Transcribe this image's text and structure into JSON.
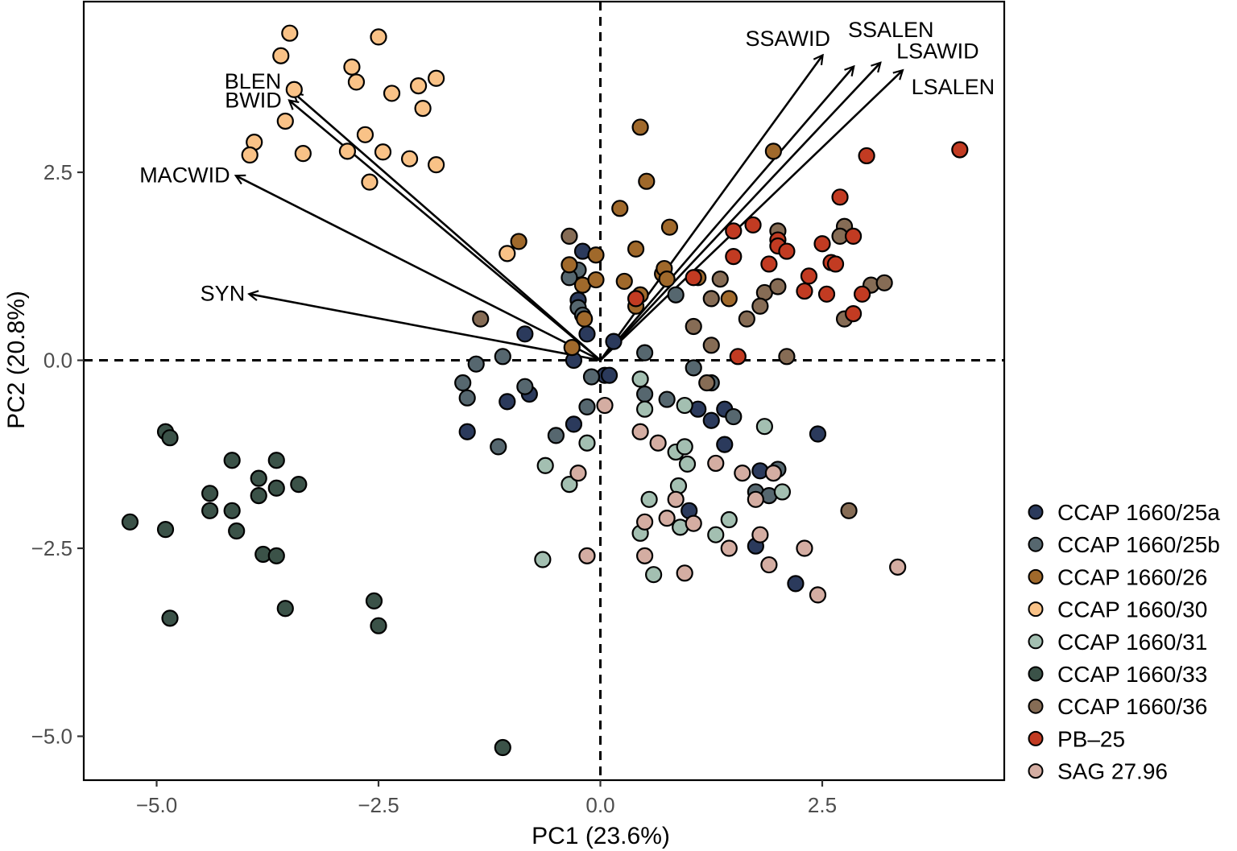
{
  "chart_data": {
    "type": "scatter",
    "title": "",
    "xlabel": "PC1 (23.6%)",
    "ylabel": "PC2 (20.8%)",
    "xlim": [
      -5.8,
      4.55
    ],
    "ylim": [
      -5.55,
      4.8
    ],
    "xticks": [
      -5.0,
      -2.5,
      0.0,
      2.5
    ],
    "xtick_labels": [
      "−5.0",
      "−2.5",
      "0.0",
      "2.5"
    ],
    "yticks": [
      -5.0,
      -2.5,
      0.0,
      2.5
    ],
    "ytick_labels": [
      "−5.0",
      "−2.5",
      "0.0",
      "2.5"
    ],
    "grid": false,
    "reference_lines": {
      "x": 0,
      "y": 0,
      "style": "dashed"
    },
    "legend_position": "right",
    "series": [
      {
        "name": "CCAP 1660/25a",
        "color": "#2b3a5c",
        "points": [
          [
            -0.2,
            1.45
          ],
          [
            -0.25,
            0.8
          ],
          [
            -0.85,
            0.35
          ],
          [
            0.15,
            0.25
          ],
          [
            -0.15,
            0.35
          ],
          [
            -0.3,
            0.0
          ],
          [
            0.05,
            -0.2
          ],
          [
            0.1,
            -0.2
          ],
          [
            -1.05,
            -0.55
          ],
          [
            -0.8,
            -0.45
          ],
          [
            -0.3,
            -0.85
          ],
          [
            -1.5,
            -0.95
          ],
          [
            1.1,
            -0.65
          ],
          [
            1.25,
            -0.8
          ],
          [
            1.4,
            -0.65
          ],
          [
            1.4,
            -1.12
          ],
          [
            2.45,
            -0.98
          ],
          [
            1.8,
            -1.47
          ],
          [
            1.0,
            -2.0
          ],
          [
            1.75,
            -2.47
          ],
          [
            2.2,
            -2.97
          ]
        ]
      },
      {
        "name": "CCAP 1660/25b",
        "color": "#56676f",
        "points": [
          -0.25,
          1.2,
          -0.35,
          1.1,
          -0.25,
          0.7,
          -0.2,
          0.6,
          -1.1,
          0.05,
          -1.4,
          -0.05,
          -1.55,
          -0.3,
          -1.5,
          -0.5,
          -0.85,
          -0.35,
          0.5,
          0.1,
          -0.1,
          -0.22,
          0.5,
          -0.45,
          0.75,
          -0.52,
          -0.15,
          -0.62,
          1.05,
          -0.1,
          -0.5,
          -1.0,
          -1.15,
          -1.15,
          0.85,
          0.87,
          1.5,
          -0.75,
          1.75,
          -1.75,
          1.9,
          -1.8,
          2.0,
          -1.45,
          1.25,
          -0.3
        ]
      },
      {
        "name": "CCAP 1660/26",
        "color": "#a0692b",
        "points": [
          [
            0.45,
            3.1
          ],
          [
            0.52,
            2.38
          ],
          [
            1.95,
            2.78
          ],
          [
            0.22,
            2.02
          ],
          [
            0.78,
            1.77
          ],
          [
            -0.92,
            1.58
          ],
          [
            0.4,
            1.48
          ],
          [
            -0.35,
            1.27
          ],
          [
            -0.05,
            1.4
          ],
          [
            -0.2,
            1.0
          ],
          [
            0.27,
            1.05
          ],
          [
            0.7,
            1.15
          ],
          [
            0.72,
            1.22
          ],
          [
            0.75,
            1.08
          ],
          [
            1.1,
            1.1
          ],
          [
            -0.05,
            1.07
          ],
          [
            0.45,
            0.87
          ],
          [
            0.4,
            0.72
          ],
          [
            -0.18,
            0.55
          ],
          [
            -0.32,
            0.17
          ],
          [
            1.45,
            0.82
          ]
        ]
      },
      {
        "name": "CCAP 1660/30",
        "color": "#f9c287",
        "points": [
          [
            -3.5,
            4.35
          ],
          [
            -2.5,
            4.3
          ],
          [
            -3.6,
            4.05
          ],
          [
            -2.8,
            3.9
          ],
          [
            -2.75,
            3.7
          ],
          [
            -1.85,
            3.75
          ],
          [
            -2.05,
            3.65
          ],
          [
            -2.35,
            3.55
          ],
          [
            -3.45,
            3.6
          ],
          [
            -2.0,
            3.35
          ],
          [
            -3.55,
            3.18
          ],
          [
            -2.65,
            3.0
          ],
          [
            -3.9,
            2.9
          ],
          [
            -3.95,
            2.73
          ],
          [
            -3.35,
            2.75
          ],
          [
            -2.85,
            2.78
          ],
          [
            -2.45,
            2.77
          ],
          [
            -2.15,
            2.68
          ],
          [
            -1.85,
            2.6
          ],
          [
            -2.6,
            2.37
          ],
          [
            -1.05,
            1.42
          ]
        ]
      },
      {
        "name": "CCAP 1660/31",
        "color": "#a3bfb1",
        "points": [
          [
            0.45,
            -0.25
          ],
          [
            0.5,
            -0.65
          ],
          [
            0.95,
            -0.6
          ],
          [
            1.85,
            -0.88
          ],
          [
            -0.15,
            -1.1
          ],
          [
            0.85,
            -1.22
          ],
          [
            0.95,
            -1.15
          ],
          [
            0.98,
            -1.38
          ],
          [
            -0.62,
            -1.4
          ],
          [
            -0.35,
            -1.65
          ],
          [
            0.55,
            -1.85
          ],
          [
            0.88,
            -1.67
          ],
          [
            2.05,
            -1.75
          ],
          [
            1.45,
            -2.12
          ],
          [
            0.45,
            -2.3
          ],
          [
            0.9,
            -2.22
          ],
          [
            1.3,
            -2.32
          ],
          [
            -0.65,
            -2.65
          ],
          [
            0.6,
            -2.85
          ]
        ]
      },
      {
        "name": "CCAP 1660/33",
        "color": "#3b5248",
        "points": [
          [
            -4.9,
            -0.95
          ],
          [
            -4.85,
            -1.03
          ],
          [
            -4.15,
            -1.33
          ],
          [
            -3.65,
            -1.33
          ],
          [
            -3.85,
            -1.57
          ],
          [
            -3.4,
            -1.65
          ],
          [
            -4.4,
            -1.77
          ],
          [
            -3.85,
            -1.8
          ],
          [
            -3.65,
            -1.7
          ],
          [
            -4.4,
            -2.0
          ],
          [
            -4.15,
            -2.0
          ],
          [
            -5.3,
            -2.15
          ],
          [
            -4.9,
            -2.25
          ],
          [
            -4.1,
            -2.27
          ],
          [
            -3.8,
            -2.58
          ],
          [
            -3.65,
            -2.6
          ],
          [
            -2.55,
            -3.2
          ],
          [
            -3.55,
            -3.3
          ],
          [
            -4.85,
            -3.43
          ],
          [
            -2.5,
            -3.53
          ],
          [
            -1.1,
            -5.15
          ]
        ]
      },
      {
        "name": "CCAP 1660/36",
        "color": "#866c55",
        "points": [
          [
            -1.35,
            0.55
          ],
          [
            -0.35,
            1.65
          ],
          [
            1.35,
            1.08
          ],
          [
            1.85,
            0.9
          ],
          [
            2.0,
            1.72
          ],
          [
            2.0,
            0.98
          ],
          [
            2.75,
            1.78
          ],
          [
            2.7,
            1.65
          ],
          [
            1.25,
            0.82
          ],
          [
            1.05,
            0.45
          ],
          [
            1.8,
            0.72
          ],
          [
            1.65,
            0.55
          ],
          [
            2.75,
            0.55
          ],
          [
            3.05,
            1.0
          ],
          [
            3.2,
            1.03
          ],
          [
            1.25,
            0.2
          ],
          [
            2.1,
            0.05
          ],
          [
            1.2,
            -0.3
          ],
          [
            2.8,
            -2.0
          ]
        ]
      },
      {
        "name": "PB–25",
        "color": "#c23b22",
        "points": [
          [
            4.05,
            2.8
          ],
          [
            3.0,
            2.72
          ],
          [
            2.7,
            2.17
          ],
          [
            1.72,
            1.8
          ],
          [
            1.5,
            1.72
          ],
          [
            2.0,
            1.6
          ],
          [
            2.0,
            1.52
          ],
          [
            2.1,
            1.45
          ],
          [
            2.5,
            1.55
          ],
          [
            2.85,
            1.65
          ],
          [
            1.5,
            1.38
          ],
          [
            1.9,
            1.28
          ],
          [
            2.6,
            1.3
          ],
          [
            2.65,
            1.28
          ],
          [
            1.05,
            1.1
          ],
          [
            2.35,
            1.12
          ],
          [
            2.95,
            0.88
          ],
          [
            2.3,
            0.92
          ],
          [
            2.55,
            0.88
          ],
          [
            0.4,
            0.82
          ],
          [
            2.85,
            0.62
          ],
          [
            1.55,
            0.05
          ]
        ]
      },
      {
        "name": "SAG 27.96",
        "color": "#d4ada2",
        "points": [
          [
            0.05,
            -0.6
          ],
          [
            0.45,
            -0.95
          ],
          [
            0.65,
            -1.1
          ],
          [
            1.3,
            -1.37
          ],
          [
            1.6,
            -1.5
          ],
          [
            1.95,
            -1.5
          ],
          [
            -0.25,
            -1.5
          ],
          [
            0.85,
            -1.85
          ],
          [
            1.75,
            -1.85
          ],
          [
            0.5,
            -2.15
          ],
          [
            0.75,
            -2.1
          ],
          [
            1.05,
            -2.17
          ],
          [
            1.8,
            -2.32
          ],
          [
            1.45,
            -2.5
          ],
          [
            2.3,
            -2.5
          ],
          [
            -0.15,
            -2.6
          ],
          [
            0.5,
            -2.6
          ],
          [
            1.9,
            -2.72
          ],
          [
            3.35,
            -2.75
          ],
          [
            0.95,
            -2.83
          ],
          [
            2.45,
            -3.12
          ]
        ]
      }
    ],
    "loadings": [
      {
        "name": "BLEN",
        "x": -3.45,
        "y": 3.55
      },
      {
        "name": "BWID",
        "x": -3.5,
        "y": 3.45
      },
      {
        "name": "MACWID",
        "x": -4.1,
        "y": 2.45
      },
      {
        "name": "SYN",
        "x": -3.95,
        "y": 0.88
      },
      {
        "name": "SSAWID",
        "x": 2.5,
        "y": 4.05
      },
      {
        "name": "SSALEN",
        "x": 2.85,
        "y": 3.9
      },
      {
        "name": "LSAWID",
        "x": 3.15,
        "y": 3.95
      },
      {
        "name": "LSALEN",
        "x": 3.4,
        "y": 3.85
      }
    ]
  }
}
